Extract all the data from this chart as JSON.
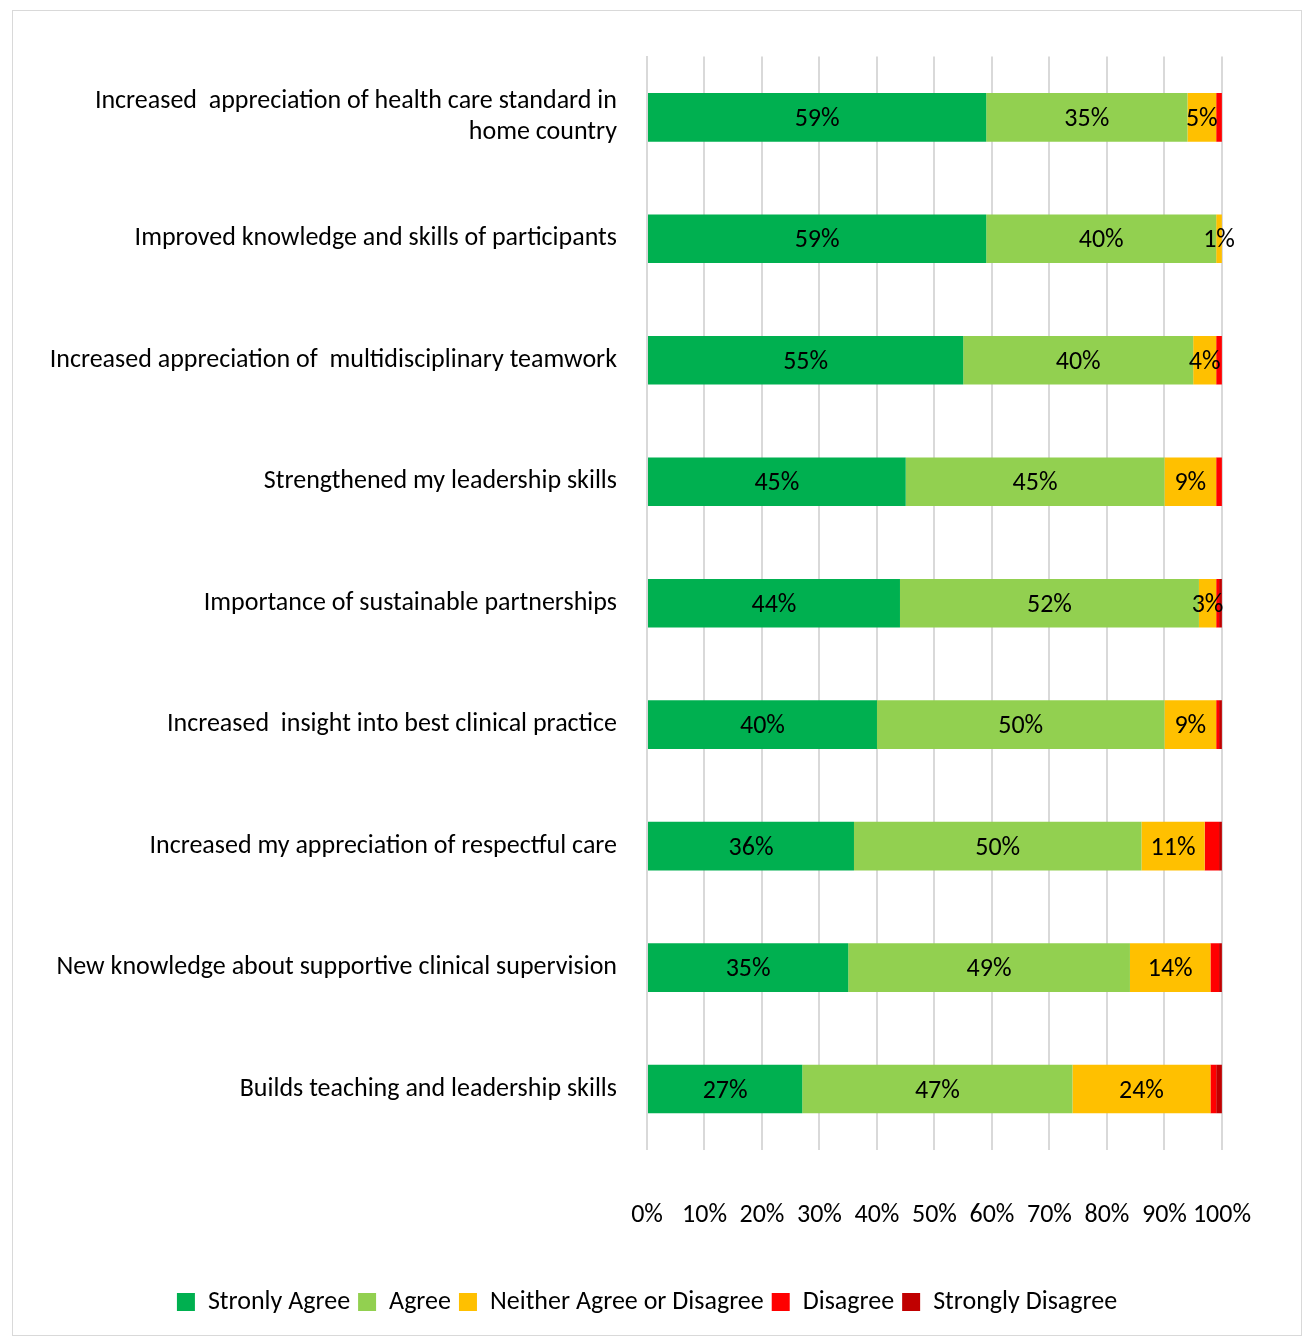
{
  "chart_data": {
    "type": "bar",
    "orientation": "horizontal",
    "stacked": true,
    "categories": [
      "Increased  appreciation of health care standard in home country",
      "Improved knowledge and skills of participants",
      "Increased appreciation of  multidisciplinary teamwork",
      "Strengthened my leadership skills",
      "Importance of sustainable partnerships",
      "Increased  insight into best clinical practice",
      "Increased my appreciation of respectful care",
      "New knowledge about supportive clinical supervision",
      "Builds teaching and leadership skills"
    ],
    "series": [
      {
        "name": "Stronly Agree",
        "color": "#00b050",
        "values": [
          59,
          59,
          55,
          45,
          44,
          40,
          36,
          35,
          27
        ],
        "value_labels": [
          "59%",
          "59%",
          "55%",
          "45%",
          "44%",
          "40%",
          "36%",
          "35%",
          "27%"
        ]
      },
      {
        "name": "Agree",
        "color": "#92d050",
        "values": [
          35,
          40,
          40,
          45,
          52,
          50,
          50,
          49,
          47
        ],
        "value_labels": [
          "35%",
          "40%",
          "40%",
          "45%",
          "52%",
          "50%",
          "50%",
          "49%",
          "47%"
        ]
      },
      {
        "name": "Neither Agree or Disagree",
        "color": "#ffc000",
        "values": [
          5,
          1,
          4,
          9,
          3,
          9,
          11,
          14,
          24
        ],
        "value_labels": [
          "5%",
          "1%",
          "4%",
          "9%",
          "3%",
          "9%",
          "11%",
          "14%",
          "24%"
        ]
      },
      {
        "name": "Disagree",
        "color": "#ff0000",
        "values": [
          1,
          0,
          1,
          1,
          0.5,
          0.5,
          2.5,
          1.5,
          1
        ]
      },
      {
        "name": "Strongly Disagree",
        "color": "#c00000",
        "values": [
          0,
          0,
          0,
          0,
          0.5,
          0.5,
          0.5,
          0.5,
          1
        ]
      }
    ],
    "xlim": [
      0,
      100
    ],
    "xticks": [
      {
        "value": 0,
        "label": "0%"
      },
      {
        "value": 10,
        "label": "10%"
      },
      {
        "value": 20,
        "label": "20%"
      },
      {
        "value": 30,
        "label": "30%"
      },
      {
        "value": 40,
        "label": "40%"
      },
      {
        "value": 50,
        "label": "50%"
      },
      {
        "value": 60,
        "label": "60%"
      },
      {
        "value": 70,
        "label": "70%"
      },
      {
        "value": 80,
        "label": "80%"
      },
      {
        "value": 90,
        "label": "90%"
      },
      {
        "value": 100,
        "label": "100%"
      }
    ],
    "grid": "x",
    "legend": "bottom"
  }
}
